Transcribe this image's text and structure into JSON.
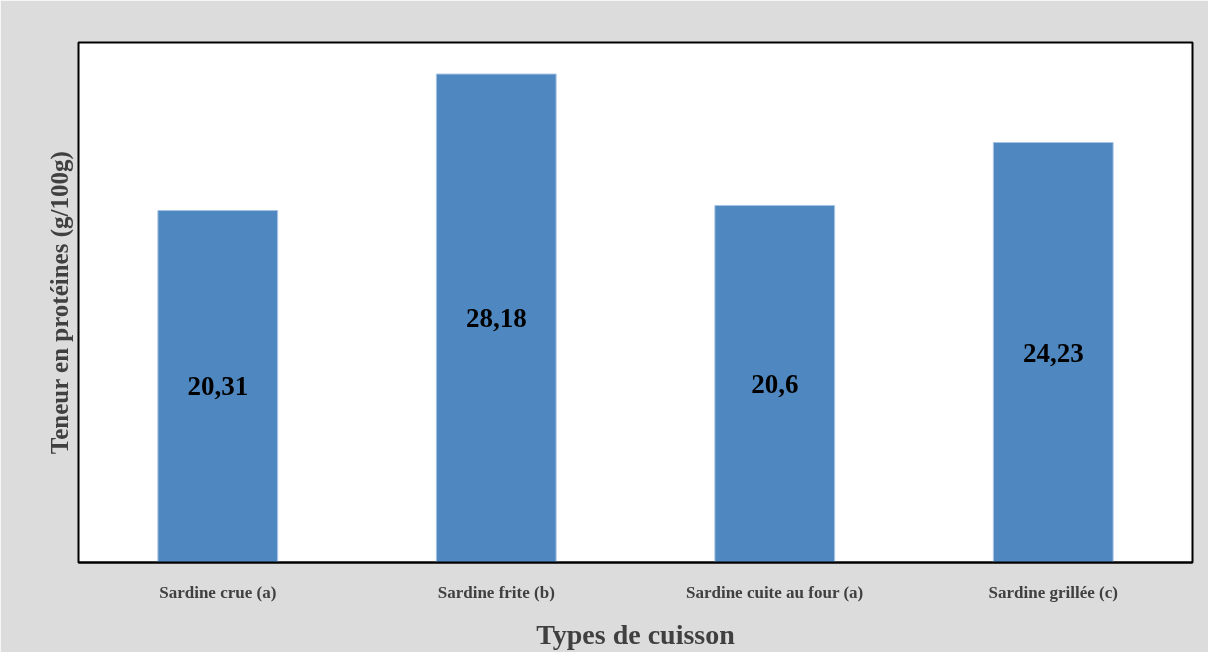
{
  "chart_data": {
    "type": "bar",
    "xlabel": "Types de cuisson",
    "ylabel": "Teneur en protéines (g/100g)",
    "categories": [
      "Sardine crue (a)",
      "Sardine frite (b)",
      "Sardine cuite au four (a)",
      "Sardine grillée (c)"
    ],
    "values": [
      20.31,
      28.18,
      20.6,
      24.23
    ],
    "value_labels": [
      "20,31",
      "28,18",
      "20,6",
      "24,23"
    ],
    "color": "#4f88c0",
    "ylim": [
      0,
      30
    ],
    "tick_labels": "x",
    "grid": false
  }
}
